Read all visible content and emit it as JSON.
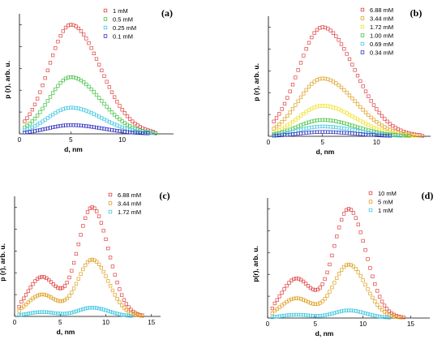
{
  "chart_data": [
    {
      "type": "scatter",
      "panel_label": "(a)",
      "xlabel": "d, nm",
      "ylabel": "p (r), arb. u.",
      "xlim": [
        0,
        15
      ],
      "ylim": [
        0,
        1.1
      ],
      "x_ticks": [
        0,
        5,
        10
      ],
      "legend_position": "top-right",
      "series": [
        {
          "name": "1    mM",
          "color": "#e04040",
          "peak_x": 5,
          "width": 2.4,
          "amp": 1.0,
          "tail_x": 13
        },
        {
          "name": "0.5  mM",
          "color": "#40c040",
          "peak_x": 5,
          "width": 2.4,
          "amp": 0.52,
          "tail_x": 13
        },
        {
          "name": "0.25 mM",
          "color": "#40c8e0",
          "peak_x": 5,
          "width": 2.5,
          "amp": 0.24,
          "tail_x": 13
        },
        {
          "name": "0.1  mM",
          "color": "#3030c0",
          "peak_x": 5,
          "width": 2.6,
          "amp": 0.08,
          "tail_x": 13
        }
      ]
    },
    {
      "type": "scatter",
      "panel_label": "(b)",
      "xlabel": "d, nm",
      "ylabel": "p (r), arb. u.",
      "xlim": [
        0,
        15
      ],
      "ylim": [
        0,
        1.1
      ],
      "x_ticks": [
        0,
        5,
        10
      ],
      "legend_position": "top-right",
      "series": [
        {
          "name": "6.88  mM",
          "color": "#e04040",
          "peak_x": 5,
          "width": 2.5,
          "amp": 1.0,
          "tail_x": 14
        },
        {
          "name": "3.44  mM",
          "color": "#e0a020",
          "peak_x": 5,
          "width": 2.5,
          "amp": 0.53,
          "tail_x": 14
        },
        {
          "name": "1.72  mM",
          "color": "#f0e020",
          "peak_x": 5,
          "width": 2.5,
          "amp": 0.28,
          "tail_x": 14
        },
        {
          "name": "1.00  mM",
          "color": "#40c040",
          "peak_x": 5,
          "width": 2.5,
          "amp": 0.15,
          "tail_x": 14
        },
        {
          "name": "0.69  mM",
          "color": "#40c8e0",
          "peak_x": 5,
          "width": 2.5,
          "amp": 0.09,
          "tail_x": 14
        },
        {
          "name": "0.34  mM",
          "color": "#3030c0",
          "peak_x": 5,
          "width": 2.5,
          "amp": 0.04,
          "tail_x": 14
        }
      ]
    },
    {
      "type": "scatter",
      "panel_label": "(c)",
      "xlabel": "d, nm",
      "ylabel": "p (r), arb. u.",
      "xlim": [
        0,
        16
      ],
      "ylim": [
        0,
        1.1
      ],
      "x_ticks": [
        0,
        5,
        10,
        15
      ],
      "legend_position": "top-left",
      "series": [
        {
          "name": "6.88  mM",
          "color": "#e04040",
          "peak_x": 8.5,
          "shoulder_x": 3,
          "amp": 1.0,
          "shoulder_amp": 0.36,
          "tail_x": 14
        },
        {
          "name": "3.44  mM",
          "color": "#e0a020",
          "peak_x": 8.5,
          "shoulder_x": 3,
          "amp": 0.52,
          "shoulder_amp": 0.2,
          "tail_x": 14
        },
        {
          "name": "1.72  mM",
          "color": "#40c8e0",
          "peak_x": 8.5,
          "shoulder_x": 3,
          "amp": 0.08,
          "shoulder_amp": 0.04,
          "tail_x": 14
        }
      ]
    },
    {
      "type": "scatter",
      "panel_label": "(d)",
      "xlabel": "d, nm",
      "ylabel": "p(r), arb. u.",
      "xlim": [
        0,
        17
      ],
      "ylim": [
        0,
        1.1
      ],
      "x_ticks": [
        0,
        5,
        10,
        15
      ],
      "legend_position": "top-right",
      "series": [
        {
          "name": "10 mM",
          "color": "#e04040",
          "peak_x": 8.5,
          "shoulder_x": 3,
          "amp": 1.0,
          "shoulder_amp": 0.36,
          "tail_x": 15
        },
        {
          "name": "5   mM",
          "color": "#e0a020",
          "peak_x": 8.5,
          "shoulder_x": 3,
          "amp": 0.49,
          "shoulder_amp": 0.18,
          "tail_x": 15
        },
        {
          "name": "1   mM",
          "color": "#40c8e0",
          "peak_x": 8.5,
          "shoulder_x": 3,
          "amp": 0.07,
          "shoulder_amp": 0.03,
          "tail_x": 15
        }
      ]
    }
  ]
}
